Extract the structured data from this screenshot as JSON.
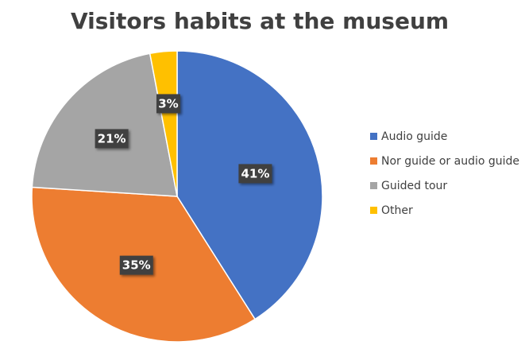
{
  "chart_data": {
    "type": "pie",
    "title": "Visitors habits at the museum",
    "categories": [
      "Audio guide",
      "Nor guide or audio guide",
      "Guided tour",
      "Other"
    ],
    "values": [
      41,
      35,
      21,
      3
    ],
    "data_labels": [
      "41%",
      "35%",
      "21%",
      "3%"
    ],
    "colors": [
      "#4472C4",
      "#ED7D31",
      "#A5A5A5",
      "#FFC000"
    ],
    "legend_position": "right",
    "start_angle_deg": 0,
    "direction": "clockwise"
  }
}
